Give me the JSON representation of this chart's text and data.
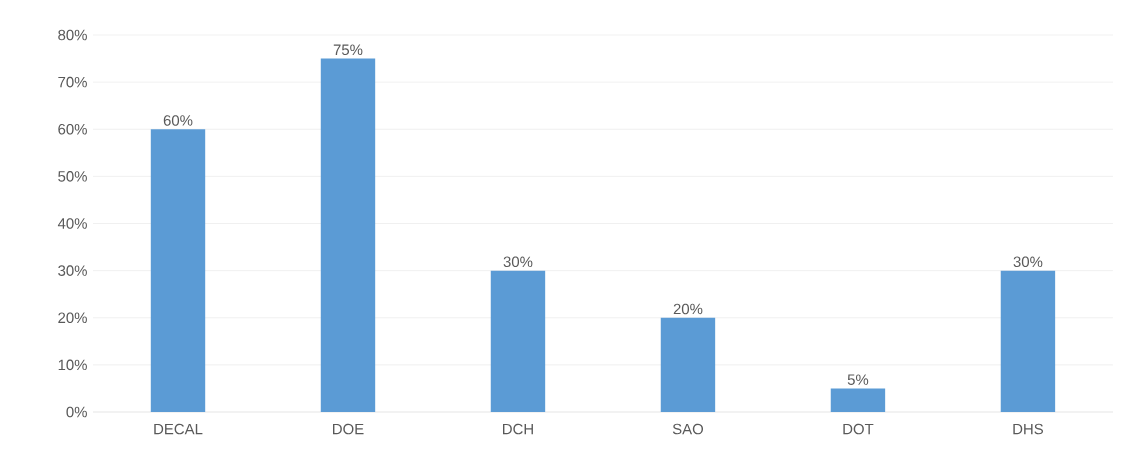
{
  "chart_data": {
    "type": "bar",
    "categories": [
      "DECAL",
      "DOE",
      "DCH",
      "SAO",
      "DOT",
      "DHS"
    ],
    "values": [
      60,
      75,
      30,
      20,
      5,
      30
    ],
    "value_labels": [
      "60%",
      "75%",
      "30%",
      "20%",
      "5%",
      "30%"
    ],
    "color": "#5b9bd5",
    "ylim": [
      0,
      80
    ],
    "yticks": [
      {
        "value": 0,
        "label": "0%"
      },
      {
        "value": 10,
        "label": "10%"
      },
      {
        "value": 20,
        "label": "20%"
      },
      {
        "value": 30,
        "label": "30%"
      },
      {
        "value": 40,
        "label": "40%"
      },
      {
        "value": 50,
        "label": "50%"
      },
      {
        "value": 60,
        "label": "60%"
      },
      {
        "value": 70,
        "label": "70%"
      },
      {
        "value": 80,
        "label": "80%"
      }
    ],
    "grid": "y"
  }
}
